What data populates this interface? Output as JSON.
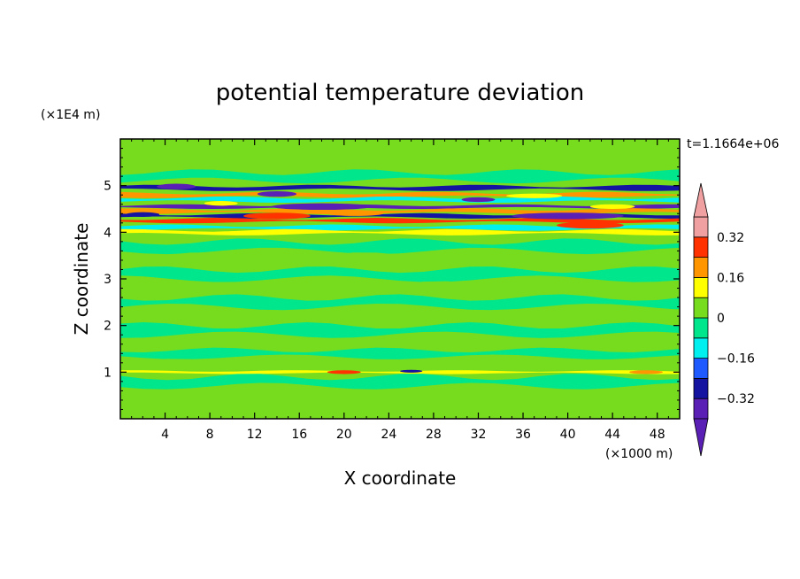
{
  "chart_data": {
    "type": "heatmap",
    "title": "potential temperature deviation",
    "xlabel": "X coordinate",
    "ylabel": "Z coordinate",
    "x_unit": "(×1000 m)",
    "y_unit": "(×1E4 m)",
    "time_label": "t=1.1664e+06",
    "xlim": [
      0,
      50
    ],
    "ylim": [
      0,
      6
    ],
    "x_ticks": [
      4,
      8,
      12,
      16,
      20,
      24,
      28,
      32,
      36,
      40,
      44,
      48
    ],
    "y_ticks": [
      1,
      2,
      3,
      4,
      5
    ],
    "colorbar": {
      "levels": [
        -0.4,
        -0.32,
        -0.24,
        -0.16,
        -0.08,
        0,
        0.08,
        0.16,
        0.24,
        0.32,
        0.4
      ],
      "labels": [
        "0.32",
        "0.16",
        "0",
        "−0.16",
        "−0.32"
      ],
      "label_values": [
        0.32,
        0.16,
        0,
        -0.16,
        -0.32
      ],
      "colors": [
        "#5a1fb4",
        "#1414a0",
        "#1e5aff",
        "#00f0f0",
        "#00e68c",
        "#78dc1e",
        "#ffff00",
        "#ff9600",
        "#ff3200",
        "#f0a0a0"
      ],
      "extend": "both"
    },
    "background_value": 0.04,
    "bands": [
      {
        "z": 5.5,
        "value": 0.04,
        "thick": 0.25
      },
      {
        "z": 5.2,
        "value": -0.04,
        "thick": 0.18
      },
      {
        "z": 4.95,
        "value": -0.28,
        "thick": 0.08
      },
      {
        "z": 4.8,
        "value": 0.2,
        "thick": 0.08
      },
      {
        "z": 4.7,
        "value": -0.14,
        "thick": 0.08
      },
      {
        "z": 4.55,
        "value": -0.36,
        "thick": 0.06
      },
      {
        "z": 4.45,
        "value": 0.18,
        "thick": 0.08
      },
      {
        "z": 4.35,
        "value": -0.3,
        "thick": 0.07
      },
      {
        "z": 4.25,
        "value": 0.28,
        "thick": 0.07
      },
      {
        "z": 4.1,
        "value": -0.12,
        "thick": 0.08
      },
      {
        "z": 4.0,
        "value": 0.12,
        "thick": 0.08
      },
      {
        "z": 3.7,
        "value": -0.04,
        "thick": 0.2
      },
      {
        "z": 3.4,
        "value": 0.04,
        "thick": 0.2
      },
      {
        "z": 3.1,
        "value": -0.04,
        "thick": 0.2
      },
      {
        "z": 2.8,
        "value": 0.04,
        "thick": 0.18
      },
      {
        "z": 2.5,
        "value": -0.04,
        "thick": 0.2
      },
      {
        "z": 2.2,
        "value": 0.04,
        "thick": 0.18
      },
      {
        "z": 1.9,
        "value": -0.04,
        "thick": 0.2
      },
      {
        "z": 1.6,
        "value": 0.04,
        "thick": 0.15
      },
      {
        "z": 1.4,
        "value": -0.04,
        "thick": 0.15
      },
      {
        "z": 1.2,
        "value": 0.04,
        "thick": 0.1
      },
      {
        "z": 1.0,
        "value": 0.14,
        "thick": 0.05
      },
      {
        "z": 0.8,
        "value": -0.04,
        "thick": 0.2
      },
      {
        "z": 0.4,
        "value": 0.04,
        "thick": 0.25
      }
    ],
    "features": [
      {
        "x": 5,
        "z": 4.98,
        "w": 3.5,
        "h": 0.06,
        "value": -0.36
      },
      {
        "x": 14,
        "z": 4.82,
        "w": 3.5,
        "h": 0.06,
        "value": -0.36
      },
      {
        "x": 18,
        "z": 4.55,
        "w": 9,
        "h": 0.07,
        "value": -0.38
      },
      {
        "x": 14,
        "z": 4.35,
        "w": 6,
        "h": 0.07,
        "value": 0.26
      },
      {
        "x": 21,
        "z": 4.4,
        "w": 5,
        "h": 0.05,
        "value": 0.2
      },
      {
        "x": 32,
        "z": 4.7,
        "w": 3,
        "h": 0.05,
        "value": -0.36
      },
      {
        "x": 40,
        "z": 4.35,
        "w": 10,
        "h": 0.07,
        "value": -0.36
      },
      {
        "x": 42,
        "z": 4.15,
        "w": 6,
        "h": 0.07,
        "value": 0.3
      },
      {
        "x": 20,
        "z": 1.0,
        "w": 3,
        "h": 0.04,
        "value": 0.26
      },
      {
        "x": 26,
        "z": 1.02,
        "w": 2,
        "h": 0.03,
        "value": -0.3
      },
      {
        "x": 47,
        "z": 1.0,
        "w": 3,
        "h": 0.04,
        "value": 0.2
      },
      {
        "x": 2,
        "z": 4.38,
        "w": 3,
        "h": 0.05,
        "value": -0.3
      },
      {
        "x": 9,
        "z": 4.62,
        "w": 3,
        "h": 0.05,
        "value": 0.14
      },
      {
        "x": 37,
        "z": 4.78,
        "w": 5,
        "h": 0.05,
        "value": 0.14
      },
      {
        "x": 44,
        "z": 4.55,
        "w": 4,
        "h": 0.05,
        "value": 0.14
      }
    ]
  }
}
